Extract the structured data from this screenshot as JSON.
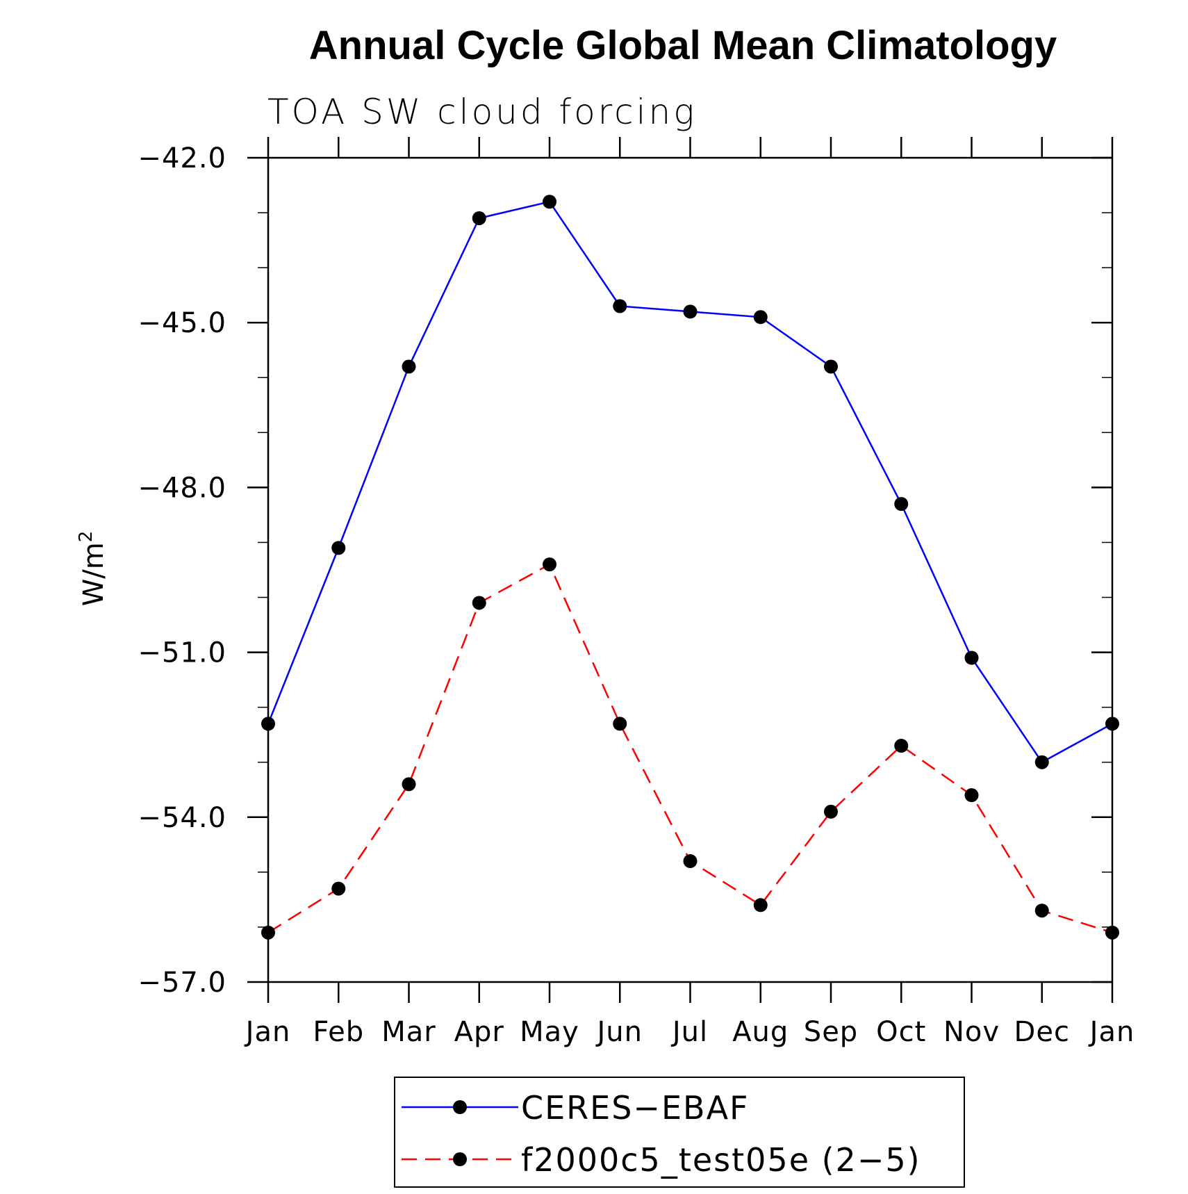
{
  "chart_data": {
    "type": "line",
    "title": "Annual Cycle Global Mean Climatology",
    "subtitle": "TOA SW cloud forcing",
    "ylabel": "W/m",
    "ylabel_superscript": "2",
    "xlabel": "",
    "categories": [
      "Jan",
      "Feb",
      "Mar",
      "Apr",
      "May",
      "Jun",
      "Jul",
      "Aug",
      "Sep",
      "Oct",
      "Nov",
      "Dec",
      "Jan"
    ],
    "ylim": [
      -57.0,
      -42.0
    ],
    "yticks": [
      -42.0,
      -45.0,
      -48.0,
      -51.0,
      -54.0,
      -57.0
    ],
    "ytick_labels": [
      "−42.0",
      "−45.0",
      "−48.0",
      "−51.0",
      "−54.0",
      "−57.0"
    ],
    "grid": false,
    "legend_position": "bottom-center",
    "series": [
      {
        "name": "CERES−EBAF",
        "color": "#0000ff",
        "dash": "solid",
        "values": [
          -52.3,
          -49.1,
          -45.8,
          -43.1,
          -42.8,
          -44.7,
          -44.8,
          -44.9,
          -45.8,
          -48.3,
          -51.1,
          -53.0,
          -52.3
        ]
      },
      {
        "name": "f2000c5_test05e (2−5)",
        "color": "#ff0000",
        "dash": "dashed",
        "values": [
          -56.1,
          -55.3,
          -53.4,
          -50.1,
          -49.4,
          -52.3,
          -54.8,
          -55.6,
          -53.9,
          -52.7,
          -53.6,
          -55.7,
          -56.1
        ]
      }
    ]
  }
}
